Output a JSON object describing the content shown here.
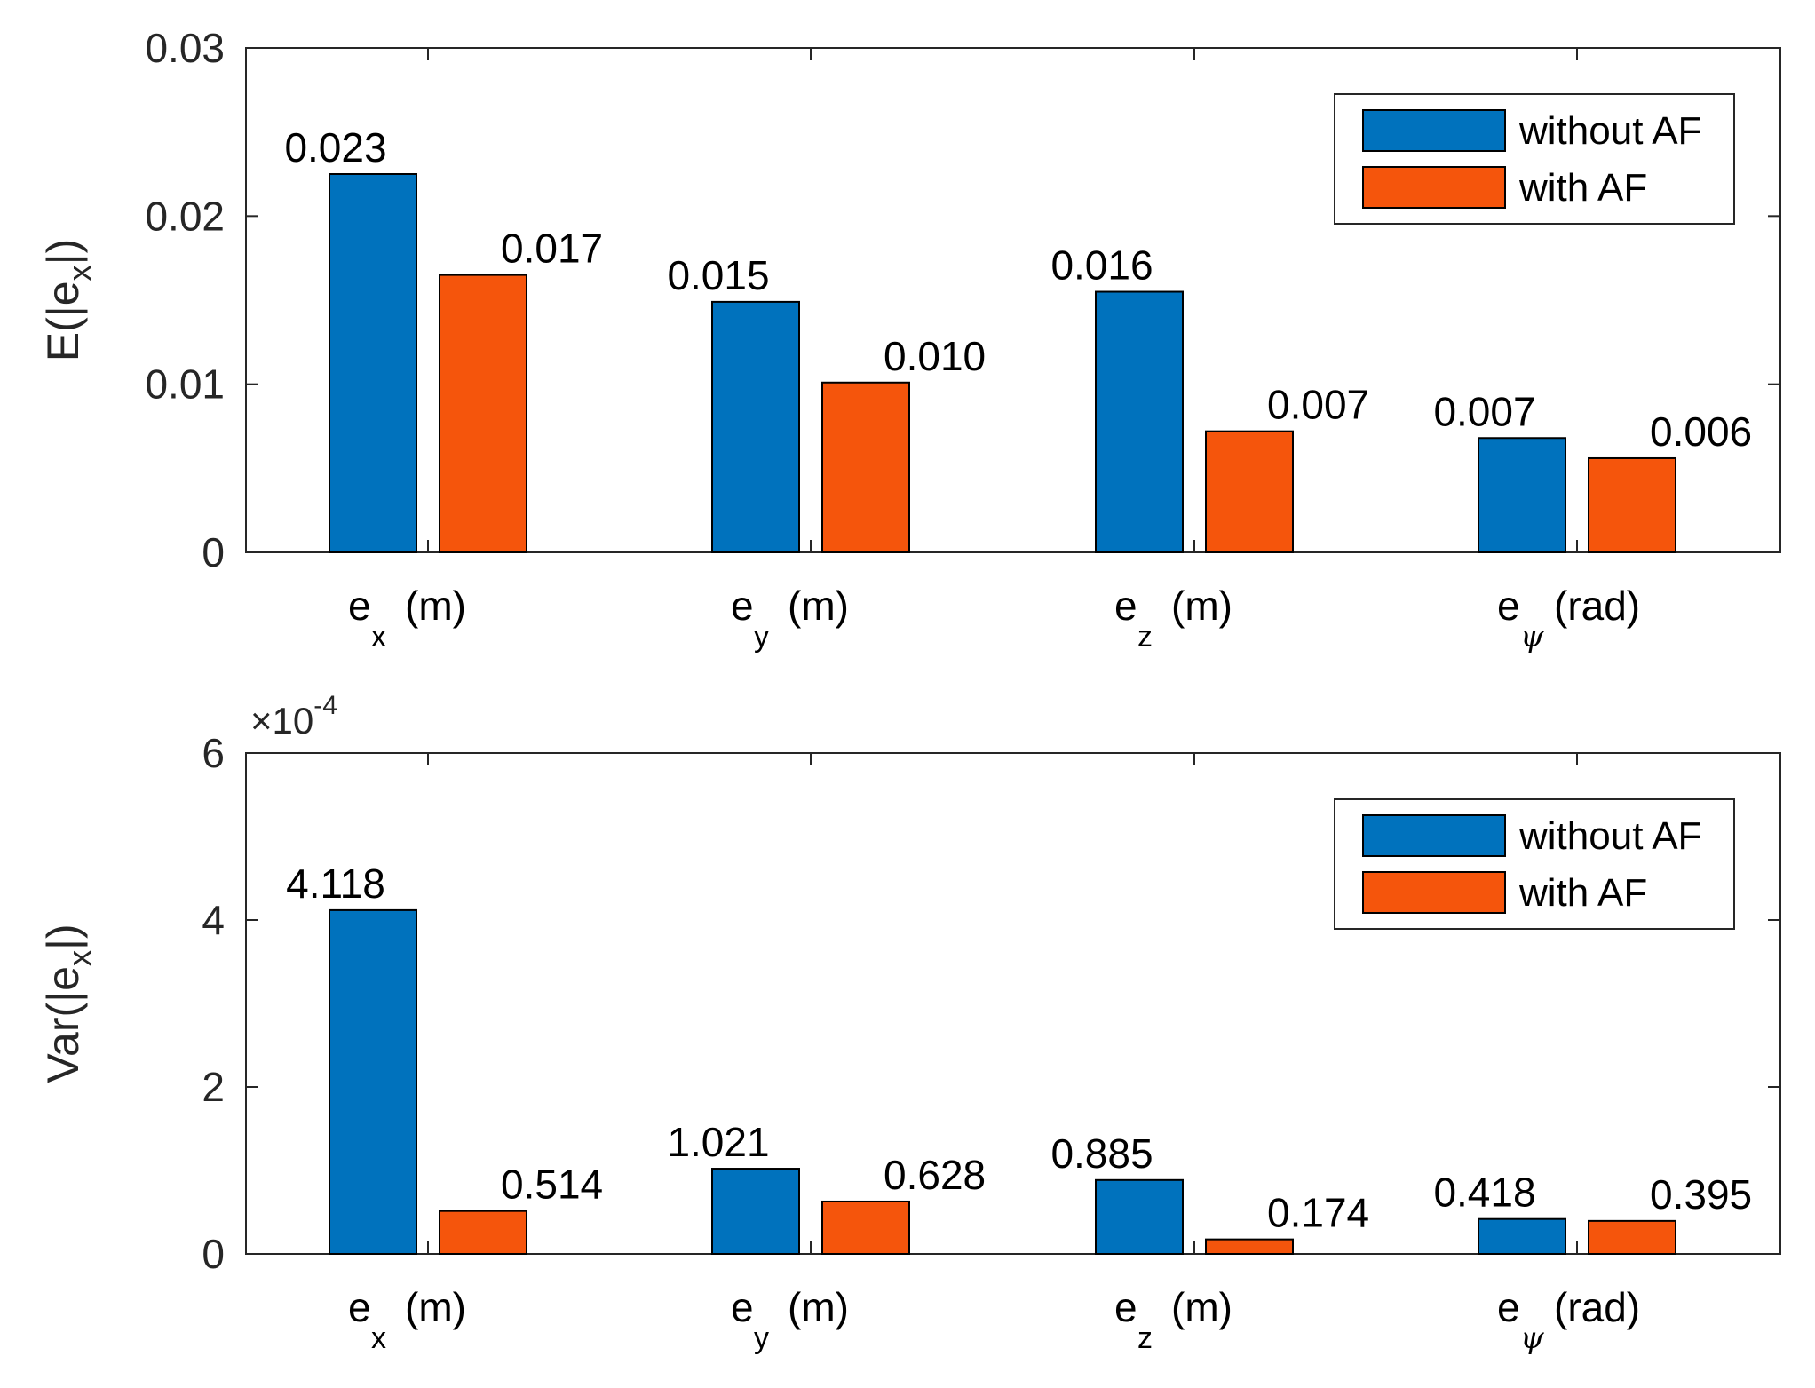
{
  "chart_data": [
    {
      "type": "bar",
      "categories": [
        {
          "main": "e",
          "sub": "x",
          "sub_italic": false,
          "unit": "(m)"
        },
        {
          "main": "e",
          "sub": "y",
          "sub_italic": false,
          "unit": "(m)"
        },
        {
          "main": "e",
          "sub": "z",
          "sub_italic": false,
          "unit": "(m)"
        },
        {
          "main": "e",
          "sub": "ψ",
          "sub_italic": true,
          "unit": "(rad)"
        }
      ],
      "series": [
        {
          "name": "without AF",
          "color": "#0072BD",
          "values": [
            0.0225,
            0.0149,
            0.0155,
            0.0068
          ],
          "labels": [
            "0.023",
            "0.015",
            "0.016",
            "0.007"
          ]
        },
        {
          "name": "with AF",
          "color": "#F5550C",
          "values": [
            0.0165,
            0.0101,
            0.0072,
            0.0056
          ],
          "labels": [
            "0.017",
            "0.010",
            "0.007",
            "0.006"
          ]
        }
      ],
      "ylabel": {
        "main": "E(|e",
        "sub": "x",
        "end": "|)"
      },
      "ylim": [
        0,
        0.03
      ],
      "yticks": [
        0,
        0.01,
        0.02,
        0.03
      ],
      "ytick_labels": [
        "0",
        "0.01",
        "0.02",
        "0.03"
      ],
      "legend": "top-right"
    },
    {
      "type": "bar",
      "categories": [
        {
          "main": "e",
          "sub": "x",
          "sub_italic": false,
          "unit": "(m)"
        },
        {
          "main": "e",
          "sub": "y",
          "sub_italic": false,
          "unit": "(m)"
        },
        {
          "main": "e",
          "sub": "z",
          "sub_italic": false,
          "unit": "(m)"
        },
        {
          "main": "e",
          "sub": "ψ",
          "sub_italic": true,
          "unit": "(rad)"
        }
      ],
      "series": [
        {
          "name": "without AF",
          "color": "#0072BD",
          "values": [
            4.118,
            1.021,
            0.885,
            0.418
          ],
          "labels": [
            "4.118",
            "1.021",
            "0.885",
            "0.418"
          ]
        },
        {
          "name": "with AF",
          "color": "#F5550C",
          "values": [
            0.514,
            0.628,
            0.174,
            0.395
          ],
          "labels": [
            "0.514",
            "0.628",
            "0.174",
            "0.395"
          ]
        }
      ],
      "ylabel": {
        "main": "Var(|e",
        "sub": "x",
        "end": "|)"
      },
      "exponent": {
        "base": "×10",
        "power": "-4"
      },
      "ylim": [
        0,
        6
      ],
      "yticks": [
        0,
        2,
        4,
        6
      ],
      "ytick_labels": [
        "0",
        "2",
        "4",
        "6"
      ],
      "legend": "top-right"
    }
  ]
}
